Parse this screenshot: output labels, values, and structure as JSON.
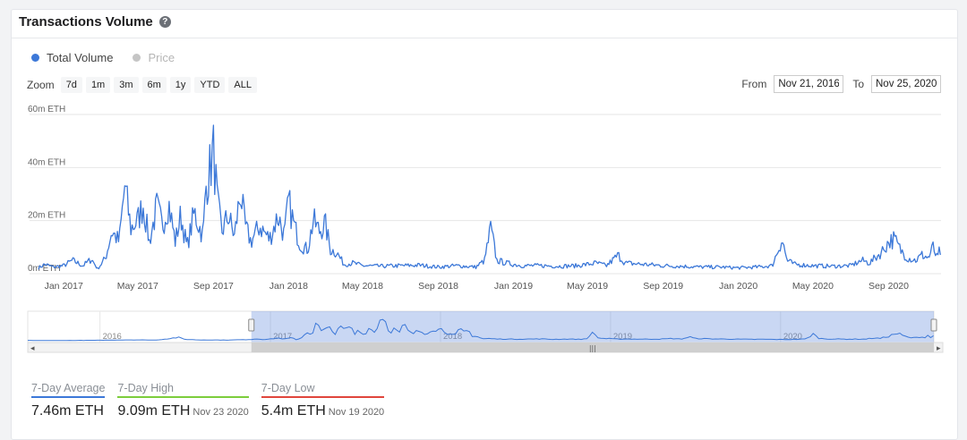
{
  "card": {
    "title": "Transactions Volume",
    "help_icon": "question-circle-icon"
  },
  "legend": [
    {
      "label": "Total Volume",
      "color": "#3c78d8"
    },
    {
      "label": "Price",
      "color": "#c5c5c5"
    }
  ],
  "zoom": {
    "label": "Zoom",
    "buttons": [
      "7d",
      "1m",
      "3m",
      "6m",
      "1y",
      "YTD",
      "ALL"
    ]
  },
  "range": {
    "from_label": "From",
    "from_value": "Nov 21, 2016",
    "to_label": "To",
    "to_value": "Nov 25, 2020"
  },
  "stats": [
    {
      "label": "7-Day Average",
      "value": "7.46m ETH",
      "date": "",
      "color": "#3c78d8"
    },
    {
      "label": "7-Day High",
      "value": "9.09m ETH",
      "date": "Nov 23 2020",
      "color": "#7ccd3c"
    },
    {
      "label": "7-Day Low",
      "value": "5.4m ETH",
      "date": "Nov 19 2020",
      "color": "#e0463c"
    }
  ],
  "chart_data": {
    "type": "line",
    "series": [
      {
        "name": "Total Volume",
        "color": "#3c78d8"
      }
    ],
    "y_ticks": [
      "0m ETH",
      "20m ETH",
      "40m ETH",
      "60m ETH"
    ],
    "y_tick_values": [
      0,
      20,
      40,
      60
    ],
    "ylim": [
      0,
      60
    ],
    "x_ticks": [
      "Jan 2017",
      "May 2017",
      "Sep 2017",
      "Jan 2018",
      "May 2018",
      "Sep 2018",
      "Jan 2019",
      "May 2019",
      "Sep 2019",
      "Jan 2020",
      "May 2020",
      "Sep 2020"
    ],
    "x_tick_dates": [
      "2017-01-01",
      "2017-05-01",
      "2017-09-01",
      "2018-01-01",
      "2018-05-01",
      "2018-09-01",
      "2019-01-01",
      "2019-05-01",
      "2019-09-01",
      "2020-01-01",
      "2020-05-01",
      "2020-09-01"
    ],
    "x_range": [
      "2016-11-21",
      "2020-11-25"
    ],
    "points": [
      [
        "2016-11-21",
        2.2
      ],
      [
        "2016-12-01",
        3.5
      ],
      [
        "2016-12-15",
        2.5
      ],
      [
        "2017-01-01",
        3.0
      ],
      [
        "2017-01-15",
        5.0
      ],
      [
        "2017-02-01",
        3.0
      ],
      [
        "2017-02-15",
        5.5
      ],
      [
        "2017-02-25",
        1.8
      ],
      [
        "2017-03-10",
        6.0
      ],
      [
        "2017-03-20",
        16.0
      ],
      [
        "2017-04-01",
        12.0
      ],
      [
        "2017-04-10",
        33.0
      ],
      [
        "2017-04-20",
        17.0
      ],
      [
        "2017-05-01",
        20.0
      ],
      [
        "2017-05-10",
        26.0
      ],
      [
        "2017-05-20",
        12.0
      ],
      [
        "2017-06-01",
        25.0
      ],
      [
        "2017-06-10",
        18.0
      ],
      [
        "2017-06-20",
        27.0
      ],
      [
        "2017-07-01",
        12.0
      ],
      [
        "2017-07-10",
        22.0
      ],
      [
        "2017-07-20",
        10.0
      ],
      [
        "2017-08-01",
        23.0
      ],
      [
        "2017-08-15",
        14.0
      ],
      [
        "2017-08-20",
        33.0
      ],
      [
        "2017-09-01",
        46.0
      ],
      [
        "2017-09-08",
        25.0
      ],
      [
        "2017-09-15",
        16.0
      ],
      [
        "2017-09-25",
        22.0
      ],
      [
        "2017-10-05",
        14.0
      ],
      [
        "2017-10-15",
        31.0
      ],
      [
        "2017-10-22",
        18.0
      ],
      [
        "2017-11-01",
        12.0
      ],
      [
        "2017-11-15",
        18.0
      ],
      [
        "2017-12-01",
        13.0
      ],
      [
        "2017-12-15",
        22.0
      ],
      [
        "2017-12-25",
        14.0
      ],
      [
        "2018-01-01",
        27.0
      ],
      [
        "2018-01-10",
        18.0
      ],
      [
        "2018-01-20",
        11.0
      ],
      [
        "2018-02-01",
        9.0
      ],
      [
        "2018-02-10",
        20.0
      ],
      [
        "2018-02-20",
        16.0
      ],
      [
        "2018-03-01",
        19.0
      ],
      [
        "2018-03-10",
        9.0
      ],
      [
        "2018-03-20",
        8.0
      ],
      [
        "2018-04-01",
        3.5
      ],
      [
        "2018-04-15",
        4.0
      ],
      [
        "2018-05-01",
        3.0
      ],
      [
        "2018-06-01",
        2.8
      ],
      [
        "2018-07-01",
        3.0
      ],
      [
        "2018-08-01",
        3.2
      ],
      [
        "2018-09-01",
        2.5
      ],
      [
        "2018-10-01",
        3.0
      ],
      [
        "2018-11-01",
        2.5
      ],
      [
        "2018-11-15",
        5.0
      ],
      [
        "2018-11-25",
        17.0
      ],
      [
        "2018-12-05",
        5.0
      ],
      [
        "2018-12-20",
        4.0
      ],
      [
        "2019-01-15",
        3.0
      ],
      [
        "2019-02-15",
        3.0
      ],
      [
        "2019-03-15",
        2.8
      ],
      [
        "2019-04-15",
        3.0
      ],
      [
        "2019-05-15",
        4.0
      ],
      [
        "2019-06-01",
        3.0
      ],
      [
        "2019-06-20",
        7.0
      ],
      [
        "2019-07-01",
        4.0
      ],
      [
        "2019-08-01",
        3.5
      ],
      [
        "2019-09-01",
        3.0
      ],
      [
        "2019-10-01",
        2.8
      ],
      [
        "2019-11-01",
        2.5
      ],
      [
        "2019-12-01",
        2.5
      ],
      [
        "2020-01-01",
        2.2
      ],
      [
        "2020-02-01",
        2.5
      ],
      [
        "2020-02-25",
        3.0
      ],
      [
        "2020-03-12",
        13.0
      ],
      [
        "2020-03-20",
        5.0
      ],
      [
        "2020-04-01",
        3.5
      ],
      [
        "2020-05-01",
        3.0
      ],
      [
        "2020-06-01",
        2.8
      ],
      [
        "2020-07-01",
        3.0
      ],
      [
        "2020-07-20",
        5.0
      ],
      [
        "2020-08-01",
        4.0
      ],
      [
        "2020-08-20",
        8.0
      ],
      [
        "2020-09-01",
        12.0
      ],
      [
        "2020-09-10",
        13.0
      ],
      [
        "2020-09-20",
        9.0
      ],
      [
        "2020-10-01",
        6.0
      ],
      [
        "2020-10-15",
        5.0
      ],
      [
        "2020-10-25",
        7.0
      ],
      [
        "2020-11-05",
        6.0
      ],
      [
        "2020-11-12",
        10.0
      ],
      [
        "2020-11-19",
        5.4
      ],
      [
        "2020-11-23",
        9.0
      ],
      [
        "2020-11-25",
        7.5
      ]
    ]
  },
  "navigator": {
    "year_labels": [
      "2016",
      "2017",
      "2018",
      "2019",
      "2020"
    ],
    "year_dates": [
      "2016-01-01",
      "2017-01-01",
      "2018-01-01",
      "2019-01-01",
      "2020-01-01"
    ],
    "range": [
      "2015-07-30",
      "2020-11-25"
    ],
    "selected": [
      "2016-11-21",
      "2020-11-25"
    ],
    "scroll_left": "◂",
    "scroll_right": "▸",
    "scroll_grip": "|||",
    "points": [
      [
        "2015-07-30",
        0.5
      ],
      [
        "2015-10-01",
        0.4
      ],
      [
        "2016-01-01",
        0.8
      ],
      [
        "2016-03-01",
        1.6
      ],
      [
        "2016-05-01",
        1.2
      ],
      [
        "2016-06-17",
        6.0
      ],
      [
        "2016-07-01",
        2.5
      ],
      [
        "2016-08-01",
        1.5
      ],
      [
        "2016-10-01",
        1.2
      ],
      [
        "2016-11-21",
        2.2
      ]
    ]
  }
}
